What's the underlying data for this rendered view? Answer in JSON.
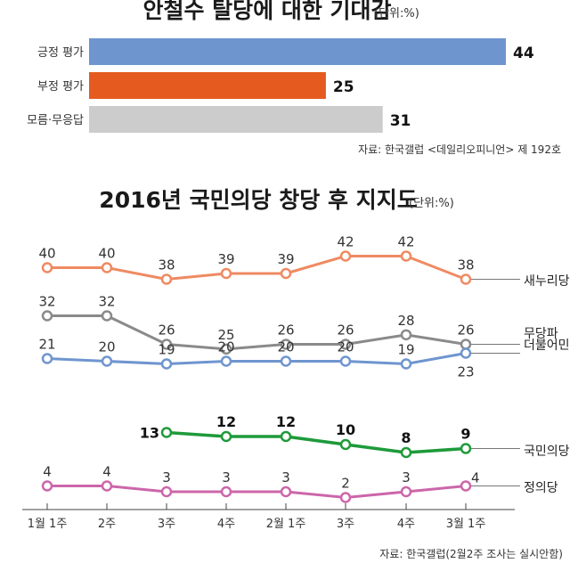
{
  "top": {
    "title": "안철수 탈당에 대한 기대감",
    "unit": "(단위:%)",
    "source": "자료: 한국갤럽 <데일리오피니언> 제 192호"
  },
  "bottom": {
    "title": "2016년 국민의당 창당 후 지지도",
    "unit": "(단위:%)",
    "source": "자료: 한국갤럽(2월2주 조사는 실시안함)"
  },
  "colors": {
    "bar_positive": "#6f95cf",
    "bar_negative": "#e55b1f",
    "bar_neutral": "#cccccc",
    "saenuri": "#ef8a62",
    "independent": "#8a8a8a",
    "minjoo": "#6f95cf",
    "people": "#1e9a3a",
    "justice": "#cc66aa"
  },
  "chart_data": [
    {
      "type": "bar",
      "orientation": "horizontal",
      "title": "안철수 탈당에 대한 기대감",
      "unit": "(단위:%)",
      "categories": [
        "긍정 평가",
        "부정 평가",
        "모름·무응답"
      ],
      "values": [
        44,
        25,
        31
      ],
      "xlim": [
        0,
        44
      ]
    },
    {
      "type": "line",
      "title": "2016년 국민의당 창당 후 지지도",
      "unit": "(단위:%)",
      "x": [
        "1월 1주",
        "2주",
        "3주",
        "4주",
        "2월 1주",
        "3주",
        "4주",
        "3월 1주"
      ],
      "ylim": [
        0,
        44
      ],
      "grid": false,
      "series": [
        {
          "name": "새누리당",
          "values": [
            40,
            40,
            38,
            39,
            39,
            42,
            42,
            38
          ]
        },
        {
          "name": "무당파",
          "values": [
            32,
            32,
            26,
            25,
            26,
            26,
            28,
            26
          ]
        },
        {
          "name": "더불어민주당",
          "values": [
            21,
            20,
            19,
            20,
            20,
            20,
            19,
            23
          ]
        },
        {
          "name": "국민의당",
          "values": [
            null,
            null,
            13,
            12,
            12,
            10,
            8,
            9
          ]
        },
        {
          "name": "정의당",
          "values": [
            4,
            4,
            3,
            3,
            3,
            2,
            3,
            4
          ]
        }
      ]
    }
  ]
}
